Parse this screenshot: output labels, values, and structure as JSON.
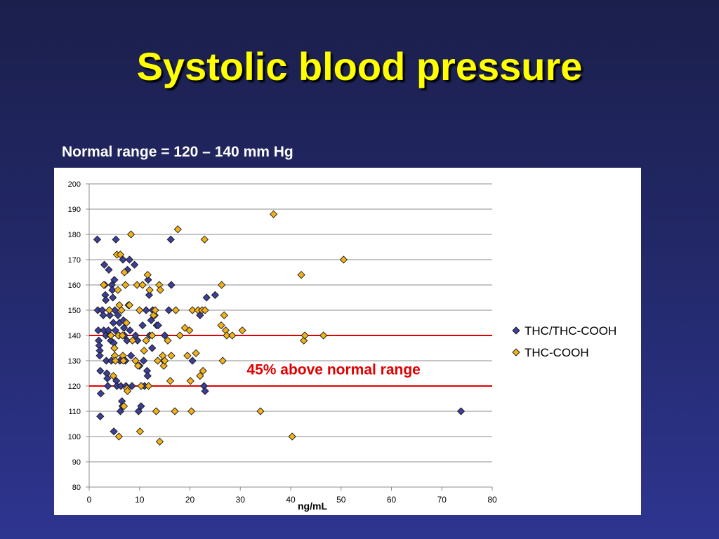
{
  "slide": {
    "title": "Systolic blood pressure",
    "subtitle": "Normal range = 120 – 140 mm Hg"
  },
  "colors": {
    "title": "#ffff00",
    "series_1": "#3b3f99",
    "series_2": "#f2b21b",
    "reference_line": "#e00000",
    "annotation": "#e00000"
  },
  "chart_data": {
    "type": "scatter",
    "xlabel": "ng/mL",
    "ylabel": "",
    "xlim": [
      0,
      80
    ],
    "ylim": [
      80,
      200
    ],
    "x_ticks": [
      0,
      10,
      20,
      30,
      40,
      50,
      60,
      70,
      80
    ],
    "y_ticks": [
      80,
      90,
      100,
      110,
      120,
      130,
      140,
      150,
      160,
      170,
      180,
      190,
      200
    ],
    "grid": "horizontal",
    "legend_position": "right",
    "reference_lines": [
      120,
      140
    ],
    "annotation": {
      "text": "45% above normal range",
      "x": 31,
      "y": 124
    },
    "series": [
      {
        "name": "THC/THC-COOH",
        "marker": "diamond",
        "color": "#3b3f99",
        "points": [
          [
            1.6,
            178
          ],
          [
            1.7,
            150
          ],
          [
            1.8,
            142
          ],
          [
            1.9,
            138
          ],
          [
            2.0,
            136
          ],
          [
            2.1,
            134
          ],
          [
            2.1,
            132
          ],
          [
            2.2,
            126
          ],
          [
            2.3,
            117
          ],
          [
            2.2,
            108
          ],
          [
            2.6,
            150
          ],
          [
            2.8,
            148
          ],
          [
            2.9,
            142
          ],
          [
            3.0,
            168
          ],
          [
            3.1,
            160
          ],
          [
            3.2,
            156
          ],
          [
            3.3,
            154
          ],
          [
            3.3,
            140
          ],
          [
            3.4,
            130
          ],
          [
            3.5,
            125
          ],
          [
            3.6,
            123
          ],
          [
            3.7,
            120
          ],
          [
            3.8,
            142
          ],
          [
            3.9,
            166
          ],
          [
            4.0,
            150
          ],
          [
            4.1,
            148
          ],
          [
            4.2,
            140
          ],
          [
            4.3,
            138
          ],
          [
            4.4,
            130
          ],
          [
            4.5,
            160
          ],
          [
            4.6,
            158
          ],
          [
            4.7,
            155
          ],
          [
            4.8,
            145
          ],
          [
            4.9,
            137
          ],
          [
            4.9,
            102
          ],
          [
            5.0,
            162
          ],
          [
            5.1,
            150
          ],
          [
            5.2,
            142
          ],
          [
            5.3,
            178
          ],
          [
            5.4,
            122
          ],
          [
            5.5,
            120
          ],
          [
            5.7,
            148
          ],
          [
            5.9,
            140
          ],
          [
            6.0,
            145
          ],
          [
            6.1,
            130
          ],
          [
            6.2,
            110
          ],
          [
            6.3,
            120
          ],
          [
            6.5,
            114
          ],
          [
            6.6,
            112
          ],
          [
            6.7,
            170
          ],
          [
            6.8,
            146
          ],
          [
            6.9,
            143
          ],
          [
            7.0,
            140
          ],
          [
            7.2,
            130
          ],
          [
            7.3,
            120
          ],
          [
            7.5,
            138
          ],
          [
            7.6,
            166
          ],
          [
            7.8,
            152
          ],
          [
            8.0,
            170
          ],
          [
            8.1,
            142
          ],
          [
            8.3,
            132
          ],
          [
            8.5,
            120
          ],
          [
            9.0,
            168
          ],
          [
            9.2,
            140
          ],
          [
            9.6,
            138
          ],
          [
            9.8,
            110
          ],
          [
            10.0,
            128
          ],
          [
            10.3,
            112
          ],
          [
            10.6,
            144
          ],
          [
            10.8,
            130
          ],
          [
            11.0,
            120
          ],
          [
            11.3,
            150
          ],
          [
            11.5,
            126
          ],
          [
            11.6,
            124
          ],
          [
            11.7,
            162
          ],
          [
            11.9,
            156
          ],
          [
            12.0,
            140
          ],
          [
            12.3,
            146
          ],
          [
            12.5,
            135
          ],
          [
            12.6,
            150
          ],
          [
            13.0,
            148
          ],
          [
            13.4,
            144
          ],
          [
            13.7,
            144
          ],
          [
            14.8,
            130
          ],
          [
            15.0,
            140
          ],
          [
            15.8,
            150
          ],
          [
            16.2,
            178
          ],
          [
            16.3,
            160
          ],
          [
            20.5,
            130
          ],
          [
            22.0,
            148
          ],
          [
            22.8,
            120
          ],
          [
            23.0,
            118
          ],
          [
            23.3,
            155
          ],
          [
            25.0,
            156
          ],
          [
            73.8,
            110
          ]
        ]
      },
      {
        "name": "THC-COOH",
        "marker": "diamond",
        "color": "#f2b21b",
        "points": [
          [
            2.9,
            160
          ],
          [
            4.0,
            150
          ],
          [
            4.3,
            140
          ],
          [
            4.8,
            124
          ],
          [
            5.0,
            135
          ],
          [
            5.1,
            132
          ],
          [
            5.2,
            130
          ],
          [
            5.5,
            172
          ],
          [
            5.7,
            158
          ],
          [
            5.8,
            140
          ],
          [
            5.9,
            100
          ],
          [
            6.0,
            152
          ],
          [
            6.2,
            172
          ],
          [
            6.4,
            150
          ],
          [
            6.6,
            140
          ],
          [
            6.7,
            132
          ],
          [
            6.8,
            130
          ],
          [
            6.9,
            112
          ],
          [
            7.0,
            165
          ],
          [
            7.2,
            160
          ],
          [
            7.4,
            145
          ],
          [
            7.5,
            119
          ],
          [
            7.6,
            118
          ],
          [
            8.0,
            152
          ],
          [
            8.3,
            180
          ],
          [
            8.6,
            138
          ],
          [
            9.2,
            130
          ],
          [
            9.5,
            160
          ],
          [
            9.7,
            128
          ],
          [
            10.0,
            150
          ],
          [
            10.1,
            102
          ],
          [
            10.3,
            120
          ],
          [
            10.6,
            160
          ],
          [
            10.9,
            134
          ],
          [
            11.3,
            138
          ],
          [
            11.6,
            164
          ],
          [
            11.8,
            120
          ],
          [
            12.0,
            158
          ],
          [
            12.5,
            140
          ],
          [
            12.8,
            148
          ],
          [
            13.1,
            150
          ],
          [
            13.3,
            110
          ],
          [
            13.6,
            130
          ],
          [
            13.9,
            160
          ],
          [
            14.0,
            98
          ],
          [
            14.1,
            158
          ],
          [
            14.6,
            132
          ],
          [
            14.8,
            128
          ],
          [
            15.0,
            130
          ],
          [
            15.6,
            138
          ],
          [
            16.1,
            122
          ],
          [
            16.3,
            132
          ],
          [
            17.0,
            110
          ],
          [
            17.2,
            150
          ],
          [
            17.6,
            182
          ],
          [
            18.0,
            140
          ],
          [
            19.0,
            143
          ],
          [
            19.5,
            132
          ],
          [
            19.9,
            142
          ],
          [
            20.1,
            122
          ],
          [
            20.3,
            110
          ],
          [
            20.5,
            150
          ],
          [
            21.2,
            133
          ],
          [
            21.6,
            150
          ],
          [
            22.0,
            124
          ],
          [
            22.4,
            150
          ],
          [
            22.6,
            126
          ],
          [
            23.0,
            150
          ],
          [
            22.9,
            178
          ],
          [
            26.2,
            144
          ],
          [
            26.3,
            160
          ],
          [
            26.5,
            130
          ],
          [
            26.8,
            148
          ],
          [
            27.1,
            142
          ],
          [
            27.3,
            140
          ],
          [
            28.4,
            140
          ],
          [
            30.4,
            142
          ],
          [
            34.0,
            110
          ],
          [
            36.6,
            188
          ],
          [
            40.3,
            100
          ],
          [
            42.1,
            164
          ],
          [
            42.6,
            138
          ],
          [
            42.8,
            140
          ],
          [
            46.5,
            140
          ],
          [
            50.5,
            170
          ]
        ]
      }
    ]
  }
}
